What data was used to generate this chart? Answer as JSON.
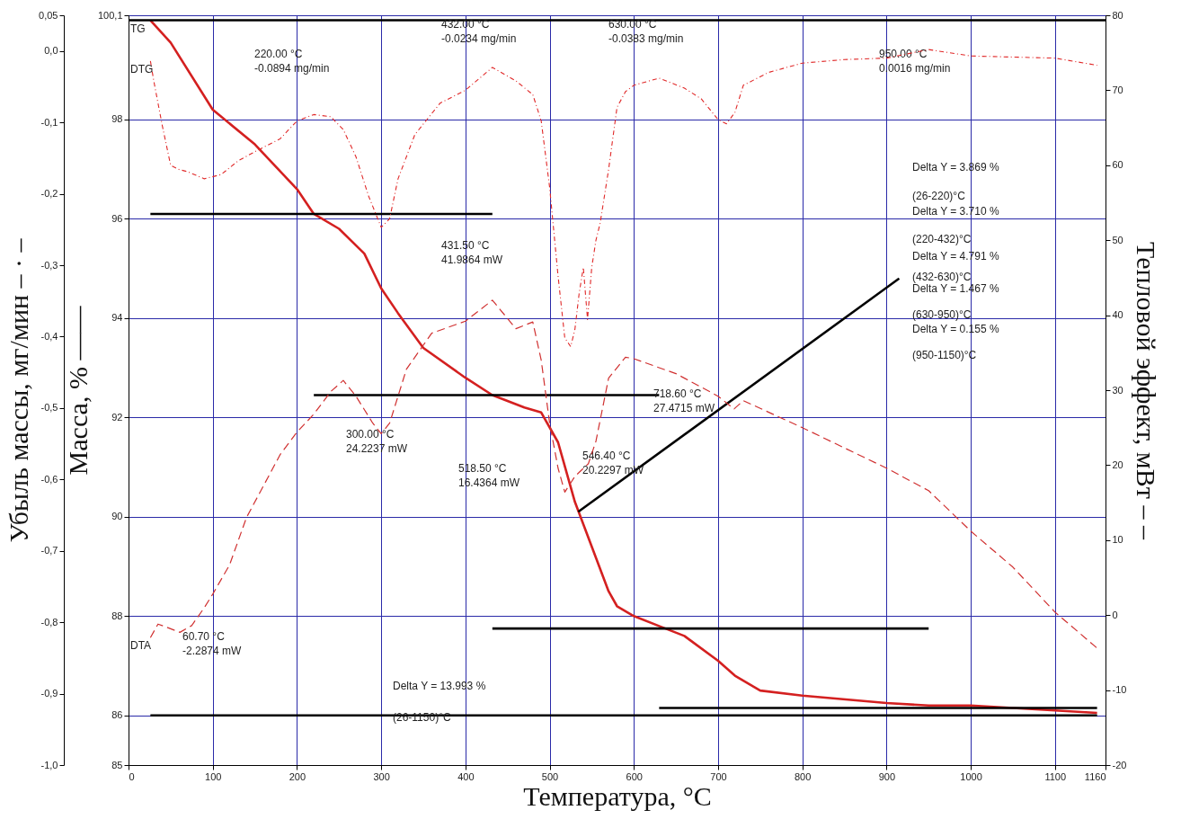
{
  "chart_data": {
    "type": "line",
    "xlabel": "Температура, °C",
    "ylabel": "Масса, % ——",
    "y2label": "Тепловой эффект, мВт – –",
    "y3label": "Убыль массы, мг/мин – · –",
    "xlim": [
      0,
      1160
    ],
    "xticks": [
      0,
      100,
      200,
      300,
      400,
      500,
      600,
      700,
      800,
      900,
      1000,
      1100,
      1160
    ],
    "ylim": [
      85,
      100.1
    ],
    "yticks": [
      85,
      86,
      88,
      90,
      92,
      94,
      96,
      98,
      {
        "value": 100.1,
        "label": "100,1"
      }
    ],
    "y2lim": [
      -20,
      80
    ],
    "y2ticks": [
      -20,
      -10,
      0,
      10,
      20,
      30,
      40,
      50,
      60,
      70,
      80
    ],
    "y3lim": [
      -1.0,
      0.05
    ],
    "y3ticks": [
      {
        "value": -1.0,
        "label": "-1,0"
      },
      {
        "value": -0.9,
        "label": "-0,9"
      },
      {
        "value": -0.8,
        "label": "-0,8"
      },
      {
        "value": -0.7,
        "label": "-0,7"
      },
      {
        "value": -0.6,
        "label": "-0,6"
      },
      {
        "value": -0.5,
        "label": "-0,5"
      },
      {
        "value": -0.4,
        "label": "-0,4"
      },
      {
        "value": -0.3,
        "label": "-0,3"
      },
      {
        "value": -0.2,
        "label": "-0,2"
      },
      {
        "value": -0.1,
        "label": "-0,1"
      },
      {
        "value": 0.0,
        "label": "0,0"
      },
      {
        "value": 0.05,
        "label": "0,05"
      }
    ],
    "grid": true,
    "series": [
      {
        "name": "TG",
        "color": "#d42020",
        "line_style": "solid",
        "x": [
          26,
          50,
          100,
          150,
          200,
          220,
          250,
          280,
          300,
          320,
          350,
          400,
          432,
          470,
          490,
          510,
          530,
          550,
          570,
          580,
          600,
          630,
          660,
          700,
          720,
          750,
          800,
          900,
          950,
          1000,
          1100,
          1150
        ],
        "values": [
          100.0,
          99.55,
          98.2,
          97.5,
          96.6,
          96.1,
          95.8,
          95.3,
          94.6,
          94.1,
          93.4,
          92.8,
          92.45,
          92.2,
          92.1,
          91.5,
          90.3,
          89.4,
          88.5,
          88.2,
          88.0,
          87.8,
          87.6,
          87.1,
          86.8,
          86.5,
          86.4,
          86.25,
          86.2,
          86.2,
          86.1,
          86.05
        ]
      },
      {
        "name": "DTG",
        "color": "#e02828",
        "line_style": "dotted",
        "axis": "y3",
        "x": [
          26,
          30,
          40,
          50,
          60,
          70,
          90,
          110,
          130,
          150,
          180,
          200,
          220,
          240,
          255,
          270,
          285,
          300,
          310,
          320,
          340,
          370,
          400,
          432,
          460,
          480,
          490,
          500,
          510,
          518,
          525,
          530,
          535,
          540,
          545,
          550,
          555,
          560,
          570,
          580,
          590,
          600,
          630,
          660,
          680,
          700,
          710,
          720,
          730,
          760,
          800,
          850,
          900,
          950,
          1000,
          1100,
          1150
        ],
        "values": [
          -0.014,
          -0.042,
          -0.104,
          -0.16,
          -0.166,
          -0.169,
          -0.179,
          -0.173,
          -0.154,
          -0.141,
          -0.123,
          -0.098,
          -0.089,
          -0.092,
          -0.11,
          -0.148,
          -0.203,
          -0.247,
          -0.235,
          -0.179,
          -0.117,
          -0.073,
          -0.055,
          -0.023,
          -0.042,
          -0.061,
          -0.098,
          -0.191,
          -0.315,
          -0.402,
          -0.414,
          -0.39,
          -0.34,
          -0.303,
          -0.376,
          -0.303,
          -0.265,
          -0.241,
          -0.166,
          -0.079,
          -0.057,
          -0.048,
          -0.038,
          -0.052,
          -0.067,
          -0.096,
          -0.102,
          -0.086,
          -0.048,
          -0.03,
          -0.017,
          -0.012,
          -0.01,
          0.002,
          -0.007,
          -0.01,
          -0.02
        ]
      },
      {
        "name": "DTA",
        "color": "#d03030",
        "line_style": "dashed",
        "axis": "y2",
        "x": [
          26,
          35,
          45,
          61,
          75,
          90,
          100,
          120,
          140,
          160,
          180,
          200,
          220,
          240,
          255,
          270,
          290,
          300,
          310,
          330,
          360,
          400,
          432,
          460,
          480,
          490,
          500,
          510,
          518,
          530,
          546,
          555,
          570,
          590,
          600,
          650,
          700,
          719,
          730,
          800,
          900,
          950,
          1000,
          1050,
          1100,
          1150
        ],
        "values": [
          -3.0,
          -1.2,
          -1.6,
          -2.3,
          -1.4,
          1.0,
          2.8,
          6.7,
          13.0,
          17.2,
          21.4,
          24.4,
          26.8,
          29.8,
          31.3,
          29.2,
          25.6,
          24.2,
          25.6,
          32.8,
          37.6,
          39.2,
          42.0,
          38.2,
          39.1,
          34.0,
          25.6,
          19.6,
          16.4,
          18.5,
          20.2,
          23.2,
          31.6,
          34.4,
          34.2,
          32.2,
          29.2,
          27.5,
          28.6,
          25.0,
          19.6,
          16.6,
          11.2,
          6.4,
          0.4,
          -4.4
        ]
      },
      {
        "type": "line",
        "color": "#000000",
        "x": [
          0,
          1160
        ],
        "values": [
          100.0,
          100.0
        ]
      },
      {
        "type": "line",
        "color": "#000000",
        "x": [
          26,
          432
        ],
        "values": [
          96.1,
          96.1
        ]
      },
      {
        "type": "line",
        "color": "#000000",
        "x": [
          220,
          630
        ],
        "values": [
          92.45,
          92.45
        ]
      },
      {
        "type": "line",
        "color": "#000000",
        "x": [
          432,
          950
        ],
        "values": [
          87.75,
          87.75
        ]
      },
      {
        "type": "line",
        "color": "#000000",
        "x": [
          630,
          1150
        ],
        "values": [
          86.15,
          86.15
        ]
      },
      {
        "type": "line",
        "color": "#000000",
        "x": [
          26,
          1150
        ],
        "values": [
          86.0,
          86.0
        ]
      },
      {
        "type": "line",
        "color": "#000000",
        "x": [
          534,
          915
        ],
        "values": [
          90.1,
          94.8
        ]
      }
    ],
    "annotations": [
      "220.00 °C\n-0.0894 mg/min",
      "432.00 °C\n-0.0234 mg/min",
      "630.00 °C\n-0.0383 mg/min",
      "950.00 °C\n0.0016 mg/min",
      "431.50 °C\n41.9864 mW",
      "300.00 °C\n24.2237 mW",
      "518.50 °C\n16.4364 mW",
      "546.40 °C\n20.2297 mW",
      "718.60 °C\n27.4715 mW",
      "60.70 °C\n-2.2874 mW",
      "Delta Y = 13.993 %",
      "(26-1150)°C",
      "Delta Y = 3.869 %",
      "(26-220)°C",
      "Delta Y = 3.710 %",
      "(220-432)°C",
      "Delta Y = 4.791 %",
      "(432-630)°C",
      "Delta Y = 1.467 %",
      "(630-950)°C",
      "Delta Y = 0.155 %",
      "(950-1150)°C"
    ]
  }
}
